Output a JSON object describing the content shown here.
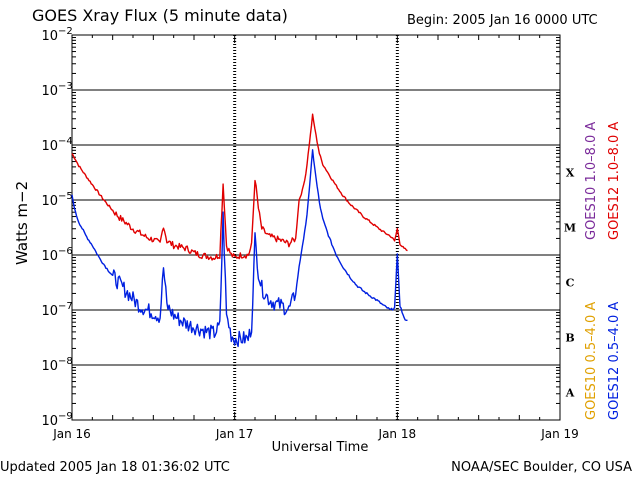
{
  "header": {
    "title": "GOES Xray Flux (5 minute data)",
    "begin_label": "Begin:",
    "begin_value": "2005 Jan 16 0000 UTC"
  },
  "footer": {
    "updated": "Updated 2005 Jan 18 01:36:02 UTC",
    "credit": "NOAA/SEC Boulder, CO USA"
  },
  "legend": {
    "goes10_long": "GOES10 1.0–8.0 A",
    "goes12_long": "GOES12 1.0–8.0 A",
    "goes10_short": "GOES10 0.5–4.0 A",
    "goes12_short": "GOES12 0.5–4.0 A"
  },
  "colors": {
    "goes10_long": "#7a2a9a",
    "goes12_long": "#e00000",
    "goes10_short": "#e0a000",
    "goes12_short": "#0020e0"
  },
  "chart_data": {
    "type": "line",
    "xlabel": "Universal Time",
    "ylabel": "Watts m−2",
    "yscale": "log",
    "ylim": [
      1e-09,
      0.01
    ],
    "xlim_hours": [
      0,
      72
    ],
    "x_ticks": [
      {
        "label": "Jan 16",
        "hour": 0
      },
      {
        "label": "Jan 17",
        "hour": 24
      },
      {
        "label": "Jan 18",
        "hour": 48
      },
      {
        "label": "Jan 19",
        "hour": 72
      }
    ],
    "y_ticks": [
      {
        "exp": -9,
        "label": "10",
        "sup": "−9"
      },
      {
        "exp": -8,
        "label": "10",
        "sup": "−8"
      },
      {
        "exp": -7,
        "label": "10",
        "sup": "−7"
      },
      {
        "exp": -6,
        "label": "10",
        "sup": "−6"
      },
      {
        "exp": -5,
        "label": "10",
        "sup": "−5"
      },
      {
        "exp": -4,
        "label": "10",
        "sup": "−4"
      },
      {
        "exp": -3,
        "label": "10",
        "sup": "−3"
      },
      {
        "exp": -2,
        "label": "10",
        "sup": "−2"
      }
    ],
    "flare_classes": [
      {
        "label": "A",
        "exp": -8
      },
      {
        "label": "B",
        "exp": -7
      },
      {
        "label": "C",
        "exp": -6
      },
      {
        "label": "M",
        "exp": -5
      },
      {
        "label": "X",
        "exp": -4
      }
    ],
    "grid_exps": [
      -8,
      -7,
      -6,
      -5,
      -4,
      -3
    ],
    "series": [
      {
        "name": "GOES12 1.0–8.0 A",
        "color": "#e00000",
        "points": [
          [
            0.0,
            7e-05
          ],
          [
            0.5,
            5.5e-05
          ],
          [
            1.0,
            4.2e-05
          ],
          [
            2.0,
            2.8e-05
          ],
          [
            3.0,
            1.9e-05
          ],
          [
            4.0,
            1.3e-05
          ],
          [
            5.0,
            9e-06
          ],
          [
            6.0,
            6.5e-06
          ],
          [
            7.0,
            4.8e-06
          ],
          [
            8.0,
            3.8e-06
          ],
          [
            9.0,
            3e-06
          ],
          [
            10.0,
            2.5e-06
          ],
          [
            11.0,
            2.1e-06
          ],
          [
            12.0,
            1.9e-06
          ],
          [
            13.0,
            1.6e-06
          ],
          [
            13.5,
            3.5e-06
          ],
          [
            14.0,
            1.8e-06
          ],
          [
            15.0,
            1.5e-06
          ],
          [
            16.0,
            1.4e-06
          ],
          [
            17.0,
            1.3e-06
          ],
          [
            18.0,
            1.1e-06
          ],
          [
            19.0,
            1e-06
          ],
          [
            20.0,
            9.5e-07
          ],
          [
            21.0,
            9e-07
          ],
          [
            21.8,
            1e-06
          ],
          [
            22.3,
            2e-05
          ],
          [
            22.8,
            1.5e-06
          ],
          [
            23.5,
            1e-06
          ],
          [
            24.0,
            9e-07
          ],
          [
            25.0,
            1e-06
          ],
          [
            26.0,
            1e-06
          ],
          [
            26.5,
            1.5e-06
          ],
          [
            27.0,
            2.5e-05
          ],
          [
            27.5,
            7e-06
          ],
          [
            28.0,
            3e-06
          ],
          [
            29.0,
            2.2e-06
          ],
          [
            30.0,
            2e-06
          ],
          [
            31.0,
            1.8e-06
          ],
          [
            32.0,
            1.6e-06
          ],
          [
            33.0,
            2e-06
          ],
          [
            33.5,
            1e-05
          ],
          [
            34.0,
            1.5e-05
          ],
          [
            34.5,
            3e-05
          ],
          [
            35.0,
            0.0001
          ],
          [
            35.5,
            0.00035
          ],
          [
            36.0,
            0.00015
          ],
          [
            36.5,
            7e-05
          ],
          [
            37.0,
            4.5e-05
          ],
          [
            38.0,
            2.8e-05
          ],
          [
            39.0,
            1.8e-05
          ],
          [
            40.0,
            1.2e-05
          ],
          [
            41.0,
            8.5e-06
          ],
          [
            42.0,
            6.5e-06
          ],
          [
            43.0,
            5e-06
          ],
          [
            44.0,
            4e-06
          ],
          [
            45.0,
            3.2e-06
          ],
          [
            46.0,
            2.6e-06
          ],
          [
            47.0,
            2.2e-06
          ],
          [
            47.6,
            1.8e-06
          ],
          [
            48.0,
            3e-06
          ],
          [
            48.4,
            1.6e-06
          ],
          [
            49.0,
            1.3e-06
          ],
          [
            49.5,
            1.2e-06
          ]
        ]
      },
      {
        "name": "GOES12 0.5–4.0 A",
        "color": "#0020e0",
        "points": [
          [
            0.0,
            1.2e-05
          ],
          [
            0.5,
            6e-06
          ],
          [
            1.0,
            4e-06
          ],
          [
            2.0,
            2.3e-06
          ],
          [
            3.0,
            1.5e-06
          ],
          [
            4.0,
            9e-07
          ],
          [
            5.0,
            6e-07
          ],
          [
            6.0,
            4.2e-07
          ],
          [
            7.0,
            3e-07
          ],
          [
            8.0,
            2.2e-07
          ],
          [
            9.0,
            1.6e-07
          ],
          [
            10.0,
            1.2e-07
          ],
          [
            11.0,
            1e-07
          ],
          [
            12.0,
            9e-08
          ],
          [
            13.0,
            7.5e-08
          ],
          [
            13.5,
            6e-07
          ],
          [
            14.0,
            1.2e-07
          ],
          [
            15.0,
            8e-08
          ],
          [
            16.0,
            6.5e-08
          ],
          [
            17.0,
            5.5e-08
          ],
          [
            18.0,
            5e-08
          ],
          [
            19.0,
            4.5e-08
          ],
          [
            20.0,
            4e-08
          ],
          [
            21.0,
            3.8e-08
          ],
          [
            21.8,
            5e-08
          ],
          [
            22.3,
            5e-06
          ],
          [
            22.8,
            8e-08
          ],
          [
            23.5,
            3.5e-08
          ],
          [
            24.0,
            3e-08
          ],
          [
            25.0,
            3e-08
          ],
          [
            26.0,
            3e-08
          ],
          [
            26.5,
            5e-08
          ],
          [
            27.0,
            2e-06
          ],
          [
            27.5,
            5e-07
          ],
          [
            28.0,
            2.5e-07
          ],
          [
            29.0,
            1.6e-07
          ],
          [
            30.0,
            1.3e-07
          ],
          [
            31.0,
            1.2e-07
          ],
          [
            32.0,
            1e-07
          ],
          [
            33.0,
            2e-07
          ],
          [
            33.5,
            6e-07
          ],
          [
            34.0,
            1.5e-06
          ],
          [
            34.5,
            3.5e-06
          ],
          [
            35.0,
            1.5e-05
          ],
          [
            35.5,
            8e-05
          ],
          [
            36.0,
            2.5e-05
          ],
          [
            36.5,
            9e-06
          ],
          [
            37.0,
            4.5e-06
          ],
          [
            38.0,
            2e-06
          ],
          [
            39.0,
            1e-06
          ],
          [
            40.0,
            6e-07
          ],
          [
            41.0,
            4e-07
          ],
          [
            42.0,
            2.8e-07
          ],
          [
            43.0,
            2.2e-07
          ],
          [
            44.0,
            1.8e-07
          ],
          [
            45.0,
            1.5e-07
          ],
          [
            46.0,
            1.2e-07
          ],
          [
            47.0,
            1e-07
          ],
          [
            47.6,
            1.1e-07
          ],
          [
            48.0,
            1e-06
          ],
          [
            48.4,
            1.2e-07
          ],
          [
            49.0,
            7e-08
          ],
          [
            49.5,
            6.5e-08
          ]
        ]
      }
    ]
  }
}
